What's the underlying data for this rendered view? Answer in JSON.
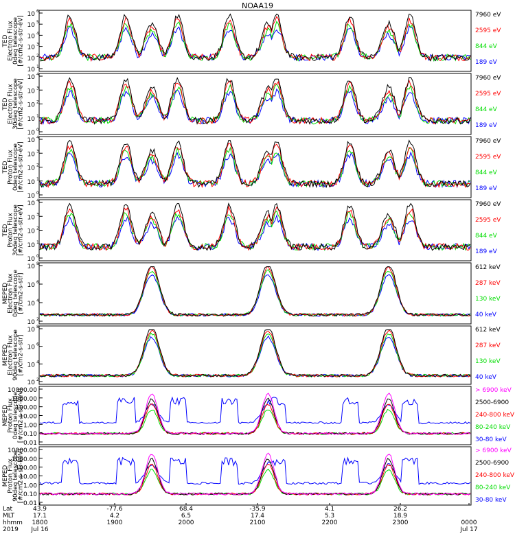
{
  "title": "NOAA19",
  "colors": {
    "blue": "#0000ff",
    "red": "#ff0000",
    "green": "#00dd00",
    "black": "#000000",
    "magenta": "#ff00ff"
  },
  "chart_data": [
    {
      "type": "line",
      "panel": "ted-electron-0deg",
      "ylabel": [
        "TED",
        "Electron Flux",
        "0deg telescope",
        "[#/cm2-s-str-eV]"
      ],
      "y_ticks": [
        "10",
        "10",
        "10",
        "10",
        "10",
        "10"
      ],
      "y_exponents": [
        "1",
        "2",
        "3",
        "4",
        "5",
        "6"
      ],
      "y_scale": "log",
      "ylim": [
        1,
        1000000
      ],
      "series": [
        {
          "name": "7960 eV",
          "color": "#000000"
        },
        {
          "name": "2595 eV",
          "color": "#ff0000"
        },
        {
          "name": "844 eV",
          "color": "#00dd00"
        },
        {
          "name": "189 eV",
          "color": "#0000ff"
        }
      ]
    },
    {
      "type": "line",
      "panel": "ted-electron-30deg",
      "ylabel": [
        "TED",
        "Electron Flux",
        "30deg telescope",
        "[#/cm2-s-str-eV]"
      ],
      "y_ticks": [
        "10",
        "10",
        "10",
        "10",
        "10"
      ],
      "y_exponents": [
        "0",
        "1",
        "2",
        "3",
        "4"
      ],
      "y_scale": "log",
      "ylim": [
        1,
        100000
      ],
      "series": [
        {
          "name": "7960 eV",
          "color": "#000000"
        },
        {
          "name": "2595 eV",
          "color": "#ff0000"
        },
        {
          "name": "844 eV",
          "color": "#00dd00"
        },
        {
          "name": "189 eV",
          "color": "#0000ff"
        }
      ]
    },
    {
      "type": "line",
      "panel": "ted-proton-0deg",
      "ylabel": [
        "TED",
        "Proton Flux",
        "0deg telescope",
        "[#/cm2-s-str-eV]"
      ],
      "y_ticks": [
        "10",
        "10",
        "10",
        "10",
        "10"
      ],
      "y_exponents": [
        "0",
        "1",
        "2",
        "3",
        "4"
      ],
      "y_scale": "log",
      "ylim": [
        1,
        100000
      ],
      "series": [
        {
          "name": "7960 eV",
          "color": "#000000"
        },
        {
          "name": "2595 eV",
          "color": "#ff0000"
        },
        {
          "name": "844 eV",
          "color": "#00dd00"
        },
        {
          "name": "189 eV",
          "color": "#0000ff"
        }
      ]
    },
    {
      "type": "line",
      "panel": "ted-proton-30deg",
      "ylabel": [
        "TED",
        "Proton Flux",
        "30deg telescope",
        "[#/cm2-s-str-eV]"
      ],
      "y_ticks": [
        "10",
        "10",
        "10",
        "10",
        "10"
      ],
      "y_exponents": [
        "0",
        "1",
        "2",
        "3",
        "4"
      ],
      "y_scale": "log",
      "ylim": [
        1,
        100000
      ],
      "series": [
        {
          "name": "7960 eV",
          "color": "#000000"
        },
        {
          "name": "2595 eV",
          "color": "#ff0000"
        },
        {
          "name": "844 eV",
          "color": "#00dd00"
        },
        {
          "name": "189 eV",
          "color": "#0000ff"
        }
      ]
    },
    {
      "type": "line",
      "panel": "meped-electron-0deg",
      "ylabel": [
        "MEPED",
        "Electron Flux",
        "0deg telescope",
        "[#/cm2-s-str]"
      ],
      "y_ticks": [
        "10",
        "10",
        "10",
        "10"
      ],
      "y_exponents": [
        "2",
        "4",
        "6",
        "8"
      ],
      "y_scale": "log",
      "ylim": [
        10,
        1000000000
      ],
      "series": [
        {
          "name": "612 keV",
          "color": "#000000"
        },
        {
          "name": "287 keV",
          "color": "#ff0000"
        },
        {
          "name": "130 keV",
          "color": "#00dd00"
        },
        {
          "name": "40 keV",
          "color": "#0000ff"
        }
      ]
    },
    {
      "type": "line",
      "panel": "meped-electron-90deg",
      "ylabel": [
        "MEPED",
        "Electron Flux",
        "90deg telescope",
        "[#/cm2-s-str]"
      ],
      "y_ticks": [
        "10",
        "10",
        "10",
        "10"
      ],
      "y_exponents": [
        "2",
        "4",
        "6",
        "8"
      ],
      "y_scale": "log",
      "ylim": [
        10,
        1000000000
      ],
      "series": [
        {
          "name": "612 keV",
          "color": "#000000"
        },
        {
          "name": "287 keV",
          "color": "#ff0000"
        },
        {
          "name": "130 keV",
          "color": "#00dd00"
        },
        {
          "name": "40 keV",
          "color": "#0000ff"
        }
      ]
    },
    {
      "type": "line",
      "panel": "meped-proton-0deg",
      "ylabel": [
        "MEPED",
        "Proton Flux",
        "0deg telescope",
        "[#/cm2-s-str-keV]"
      ],
      "y_ticks": [
        "0.01",
        "0.10",
        "1.00",
        "10.00",
        "100.00",
        "1000.00",
        "10000.00"
      ],
      "y_scale": "log",
      "ylim": [
        0.01,
        10000
      ],
      "series": [
        {
          "name": "> 6900 keV",
          "color": "#ff00ff"
        },
        {
          "name": "2500-6900",
          "color": "#000000"
        },
        {
          "name": "240-800 keV",
          "color": "#ff0000"
        },
        {
          "name": "80-240 keV",
          "color": "#00dd00"
        },
        {
          "name": "30-80 keV",
          "color": "#0000ff"
        }
      ]
    },
    {
      "type": "line",
      "panel": "meped-proton-90deg",
      "ylabel": [
        "MEPED",
        "Proton Flux",
        "90deg telescope",
        "[#/cm2-s-str-keV]"
      ],
      "y_ticks": [
        "0.01",
        "0.10",
        "1.00",
        "10.00",
        "100.00",
        "1000.00",
        "10000.00"
      ],
      "y_scale": "log",
      "ylim": [
        0.01,
        10000
      ],
      "series": [
        {
          "name": "> 6900 keV",
          "color": "#ff00ff"
        },
        {
          "name": "2500-6900",
          "color": "#000000"
        },
        {
          "name": "240-800 keV",
          "color": "#ff0000"
        },
        {
          "name": "80-240 keV",
          "color": "#00dd00"
        },
        {
          "name": "30-80 keV",
          "color": "#0000ff"
        }
      ]
    }
  ],
  "x_axis": {
    "row_labels": [
      "Lat",
      "MLT",
      "hhmm",
      "2019"
    ],
    "ticks": [
      {
        "lat": "43.9",
        "mlt": "17.1",
        "hhmm": "1800",
        "date": "Jul 16"
      },
      {
        "lat": "-77.6",
        "mlt": "4.2",
        "hhmm": "1900",
        "date": ""
      },
      {
        "lat": "68.4",
        "mlt": "6.5",
        "hhmm": "2000",
        "date": ""
      },
      {
        "lat": "-35.9",
        "mlt": "17.4",
        "hhmm": "2100",
        "date": ""
      },
      {
        "lat": "4.1",
        "mlt": "5.3",
        "hhmm": "2200",
        "date": ""
      },
      {
        "lat": "26.2",
        "mlt": "18.9",
        "hhmm": "2300",
        "date": ""
      },
      {
        "lat": "",
        "mlt": "",
        "hhmm": "0000",
        "date": "Jul 17"
      }
    ]
  }
}
